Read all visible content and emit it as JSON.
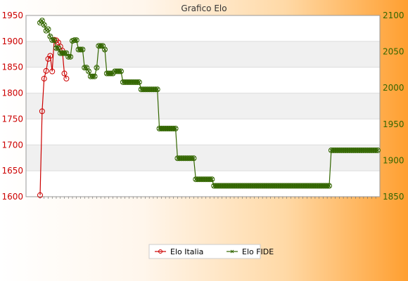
{
  "chart_data": {
    "type": "line",
    "title": "Grafico Elo",
    "y_left": {
      "min": 1600,
      "max": 1950,
      "ticks": [
        1600,
        1650,
        1700,
        1750,
        1800,
        1850,
        1900,
        1950
      ],
      "color": "#cc0000"
    },
    "y_right": {
      "min": 1850,
      "max": 2100,
      "ticks": [
        1850,
        1900,
        1950,
        2000,
        2050,
        2100
      ],
      "color": "#336600"
    },
    "grid": true,
    "legend": {
      "placement": "bottom-center"
    },
    "series": [
      {
        "name": "Elo Italia",
        "axis": "left",
        "color": "#cc0000",
        "marker": "circle",
        "values": [
          1603,
          1765,
          1828,
          1843,
          1866,
          1872,
          1842,
          1903,
          1902,
          1898,
          1890,
          1882,
          1838,
          1828
        ]
      },
      {
        "name": "Elo FIDE",
        "axis": "right",
        "color": "#336600",
        "marker": "x",
        "values": [
          2090,
          2093,
          2087,
          2079,
          2081,
          2071,
          2066,
          2066,
          2055,
          2055,
          2048,
          2048,
          2048,
          2048,
          2043,
          2043,
          2065,
          2066,
          2066,
          2053,
          2053,
          2053,
          2028,
          2028,
          2023,
          2016,
          2016,
          2016,
          2028,
          2058,
          2058,
          2058,
          2053,
          2020,
          2020,
          2020,
          2020,
          2023,
          2023,
          2023,
          2023,
          2008,
          2008,
          2008,
          2008,
          2008,
          2008,
          2008,
          2008,
          2008,
          1998,
          1998,
          1998,
          1998,
          1998,
          1998,
          1998,
          1998,
          1998,
          1944,
          1944,
          1944,
          1944,
          1944,
          1944,
          1944,
          1944,
          1944,
          1903,
          1903,
          1903,
          1903,
          1903,
          1903,
          1903,
          1903,
          1903,
          1874,
          1874,
          1874,
          1874,
          1874,
          1874,
          1874,
          1874,
          1874,
          1865,
          1865,
          1865,
          1865,
          1865,
          1865,
          1865,
          1865,
          1865,
          1865,
          1865,
          1865,
          1865,
          1865,
          1865,
          1865,
          1865,
          1865,
          1865,
          1865,
          1865,
          1865,
          1865,
          1865,
          1865,
          1865,
          1865,
          1865,
          1865,
          1865,
          1865,
          1865,
          1865,
          1865,
          1865,
          1865,
          1865,
          1865,
          1865,
          1865,
          1865,
          1865,
          1865,
          1865,
          1865,
          1865,
          1865,
          1865,
          1865,
          1865,
          1865,
          1865,
          1865,
          1865,
          1865,
          1865,
          1865,
          1865,
          1914,
          1914,
          1914,
          1914,
          1914,
          1914,
          1914,
          1914,
          1914,
          1914,
          1914,
          1914,
          1914,
          1914,
          1914,
          1914,
          1914,
          1914,
          1914,
          1914,
          1914,
          1914,
          1914,
          1914
        ]
      }
    ]
  }
}
